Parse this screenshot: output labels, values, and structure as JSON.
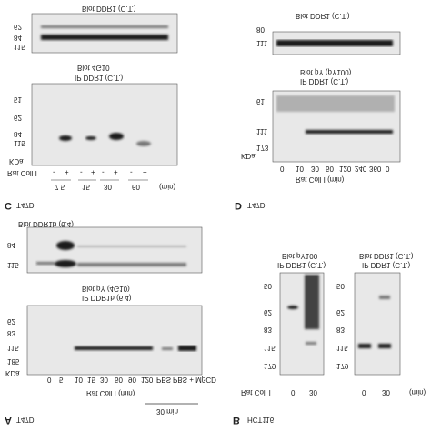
{
  "panel_a": {
    "label": "A",
    "cell": "T47D",
    "blot_top": "Blot DDR1b (6.4)",
    "top_markers": [
      "84",
      "115"
    ],
    "blot_bottom": "Blot pY (4G10)",
    "ip": "IP DDR1b (6.4)",
    "kda": "KDa",
    "markers": [
      "62",
      "83",
      "115",
      "185"
    ],
    "lanes": [
      "0",
      "5",
      "10",
      "15",
      "30",
      "60",
      "90",
      "120",
      "PBS",
      "PBS + MβCD"
    ],
    "treatment": "Rat Coll I (min)",
    "group": "30 min"
  },
  "panel_b": {
    "label": "B",
    "cell": "HCT116",
    "treatment": "Rat Coll I",
    "unit": "(min)",
    "left": {
      "blot": "Blot pY100",
      "ip": "IP DDR1 (C.T.)",
      "markers": [
        "50",
        "62",
        "83",
        "115",
        "179"
      ],
      "lanes": [
        "0",
        "30"
      ]
    },
    "right": {
      "blot": "Blot DDR1 (C.T.)",
      "ip": "IP DDR1 (C.T.)",
      "markers": [
        "50",
        "62",
        "83",
        "115",
        "179"
      ],
      "lanes": [
        "0",
        "30"
      ]
    }
  },
  "panel_c": {
    "label": "C",
    "cell": "T47D",
    "blot_top": "Blot DDR1 (C.T.)",
    "top_markers": [
      "62",
      "84",
      "115"
    ],
    "blot_bottom": "Blot 4G10",
    "ip": "IP DDR1 (C.T.)",
    "kda": "KDa",
    "markers": [
      "51",
      "62",
      "84",
      "115"
    ],
    "treatment": "Rat Coll I",
    "signs": [
      "-",
      "+",
      "-",
      "+",
      "-",
      "+",
      "-",
      "+"
    ],
    "times": [
      "7.5",
      "15",
      "30",
      "60"
    ],
    "unit": "(min)"
  },
  "panel_d": {
    "label": "D",
    "cell": "T47D",
    "blot_top": "Blot DDR1 (C.T.)",
    "top_markers": [
      "80",
      "111"
    ],
    "blot_bottom": "Blot pY (pY100)",
    "ip": "IP DDR1 (C.T.)",
    "kda": "KDa",
    "markers": [
      "61",
      "111",
      "173"
    ],
    "lanes": [
      "0",
      "10",
      "30",
      "60",
      "120",
      "240",
      "360",
      "0"
    ],
    "treatment": "Rat Coll I (min)"
  }
}
